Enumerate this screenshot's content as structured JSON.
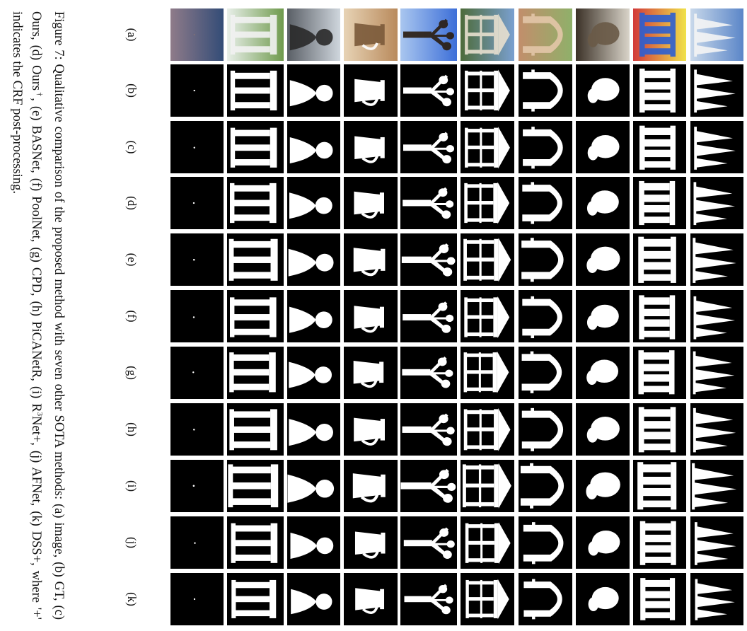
{
  "column_labels": [
    "(a)",
    "(b)",
    "(c)",
    "(d)",
    "(e)",
    "(f)",
    "(g)",
    "(h)",
    "(i)",
    "(j)",
    "(k)"
  ],
  "rows": [
    {
      "subject": "sailboats",
      "icon": "sailboat-icon"
    },
    {
      "subject": "colorful figures",
      "icon": "figures-icon"
    },
    {
      "subject": "sculpture",
      "icon": "sculpture-icon"
    },
    {
      "subject": "garden arch",
      "icon": "arch-icon"
    },
    {
      "subject": "gazebo",
      "icon": "gazebo-icon"
    },
    {
      "subject": "tree",
      "icon": "tree-icon"
    },
    {
      "subject": "pitcher",
      "icon": "pitcher-icon"
    },
    {
      "subject": "statue",
      "icon": "statue-icon"
    },
    {
      "subject": "pavilion",
      "icon": "pavilion-icon"
    },
    {
      "subject": "small object",
      "icon": "dot-icon"
    }
  ],
  "caption": {
    "text": "Figure 7: Qualitative comparison of the proposed method with seven other SOTA methods: (a) image, (b) GT, (c) Ours, (d) Ours",
    "dagger": "†",
    "text_2": ", (e) BASNet, (f) PoolNet, (g) CPD, (h) PiCANetR, (i) R",
    "superscript": "3",
    "text_3": "Net+, (j) AFNet, (k) DSS+, where '+' indicates the CRF post-processing."
  },
  "colors": {
    "background": "#ffffff",
    "mask_bg": "#000000",
    "mask_fg": "#ffffff",
    "text": "#111111"
  }
}
